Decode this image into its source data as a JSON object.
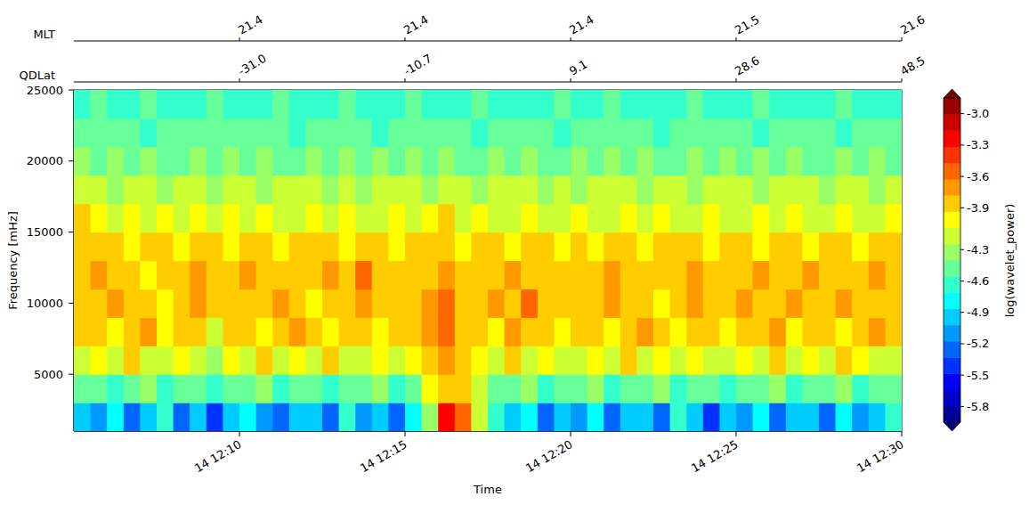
{
  "chart_data": {
    "type": "heatmap",
    "x_label": "Time",
    "y_label": "Frequency [mHz]",
    "xlim": [
      5,
      30
    ],
    "xticks": [
      {
        "value": 10,
        "label": "14 12:10"
      },
      {
        "value": 15,
        "label": "14 12:15"
      },
      {
        "value": 20,
        "label": "14 12:20"
      },
      {
        "value": 25,
        "label": "14 12:25"
      },
      {
        "value": 30,
        "label": "14 12:30"
      }
    ],
    "ylim": [
      1000,
      25000
    ],
    "yticks": [
      5000,
      10000,
      15000,
      20000,
      25000
    ],
    "x": [
      5.25,
      5.75,
      6.25,
      6.75,
      7.25,
      7.75,
      8.25,
      8.75,
      9.25,
      9.75,
      10.25,
      10.75,
      11.25,
      11.75,
      12.25,
      12.75,
      13.25,
      13.75,
      14.25,
      14.75,
      15.25,
      15.75,
      16.25,
      16.75,
      17.25,
      17.75,
      18.25,
      18.75,
      19.25,
      19.75,
      20.25,
      20.75,
      21.25,
      21.75,
      22.25,
      22.75,
      23.25,
      23.75,
      24.25,
      24.75,
      25.25,
      25.75,
      26.25,
      26.75,
      27.25,
      27.75,
      28.25,
      28.75,
      29.25,
      29.75
    ],
    "y": [
      2000,
      4000,
      6000,
      8000,
      10000,
      12000,
      14000,
      16000,
      18000,
      20000,
      22000,
      24000
    ],
    "cells": [
      [
        -4.9,
        -5.1,
        -4.8,
        -5.3,
        -5.0,
        -4.7,
        -5.2,
        -4.9,
        -5.4,
        -5.0,
        -4.8,
        -5.1,
        -5.3,
        -4.9,
        -5.0,
        -5.2,
        -4.7,
        -5.1,
        -5.0,
        -5.3,
        -4.8,
        -4.3,
        -3.2,
        -3.5,
        -4.2,
        -4.7,
        -5.0,
        -4.8,
        -5.2,
        -4.9,
        -5.1,
        -4.8,
        -5.3,
        -5.0,
        -4.9,
        -5.2,
        -4.7,
        -5.0,
        -5.4,
        -4.9,
        -5.1,
        -4.8,
        -5.2,
        -5.0,
        -4.9,
        -5.3,
        -4.8,
        -5.1,
        -5.0,
        -4.7
      ],
      [
        -4.5,
        -4.4,
        -4.7,
        -4.5,
        -4.3,
        -4.6,
        -4.4,
        -4.5,
        -4.7,
        -4.4,
        -4.5,
        -4.3,
        -4.6,
        -4.4,
        -4.5,
        -4.7,
        -4.4,
        -4.5,
        -4.3,
        -4.6,
        -4.4,
        -4.0,
        -3.8,
        -3.9,
        -4.1,
        -4.4,
        -4.5,
        -4.3,
        -4.6,
        -4.4,
        -4.5,
        -4.3,
        -4.6,
        -4.4,
        -4.5,
        -4.3,
        -4.6,
        -4.5,
        -4.4,
        -4.7,
        -4.4,
        -4.5,
        -4.3,
        -4.6,
        -4.4,
        -4.5,
        -4.3,
        -4.6,
        -4.4,
        -4.5
      ],
      [
        -4.1,
        -4.0,
        -4.2,
        -3.9,
        -4.1,
        -4.2,
        -4.0,
        -4.1,
        -4.3,
        -4.0,
        -4.1,
        -3.9,
        -4.2,
        -4.0,
        -4.1,
        -3.9,
        -4.2,
        -4.1,
        -4.0,
        -4.2,
        -4.0,
        -3.8,
        -3.7,
        -3.9,
        -4.0,
        -4.1,
        -3.9,
        -4.2,
        -4.0,
        -4.1,
        -4.2,
        -4.0,
        -4.1,
        -3.9,
        -4.2,
        -4.0,
        -4.1,
        -4.0,
        -4.2,
        -4.1,
        -4.0,
        -4.1,
        -3.9,
        -4.2,
        -4.0,
        -4.1,
        -3.9,
        -4.0,
        -4.2,
        -4.1
      ],
      [
        -3.9,
        -3.8,
        -4.0,
        -3.9,
        -3.7,
        -4.0,
        -3.9,
        -3.8,
        -4.1,
        -3.9,
        -3.8,
        -4.0,
        -3.9,
        -3.7,
        -3.9,
        -4.0,
        -3.8,
        -3.9,
        -4.0,
        -3.8,
        -3.9,
        -3.7,
        -3.6,
        -3.8,
        -3.9,
        -4.0,
        -3.7,
        -3.9,
        -3.8,
        -4.0,
        -3.9,
        -3.8,
        -4.0,
        -3.9,
        -3.7,
        -3.9,
        -4.0,
        -3.8,
        -3.9,
        -4.0,
        -3.8,
        -3.9,
        -3.7,
        -4.0,
        -3.9,
        -3.8,
        -4.0,
        -3.9,
        -3.7,
        -3.9
      ],
      [
        -3.8,
        -3.9,
        -3.7,
        -3.9,
        -3.8,
        -4.0,
        -3.8,
        -3.7,
        -3.9,
        -3.8,
        -3.9,
        -3.8,
        -3.7,
        -3.9,
        -4.0,
        -3.8,
        -3.9,
        -3.7,
        -3.8,
        -3.9,
        -3.8,
        -3.7,
        -3.6,
        -3.8,
        -3.9,
        -3.7,
        -3.8,
        -3.6,
        -3.9,
        -3.8,
        -3.9,
        -3.8,
        -3.7,
        -3.9,
        -3.8,
        -4.0,
        -3.8,
        -3.7,
        -3.9,
        -3.8,
        -3.7,
        -3.9,
        -3.8,
        -3.7,
        -3.9,
        -3.8,
        -3.7,
        -3.9,
        -3.8,
        -3.9
      ],
      [
        -3.8,
        -3.7,
        -3.9,
        -3.8,
        -4.0,
        -3.8,
        -3.9,
        -3.7,
        -3.8,
        -3.9,
        -3.7,
        -3.9,
        -3.8,
        -3.8,
        -3.9,
        -3.7,
        -3.8,
        -3.6,
        -3.8,
        -3.9,
        -3.8,
        -3.9,
        -3.7,
        -3.8,
        -3.9,
        -3.8,
        -3.7,
        -3.9,
        -3.8,
        -3.9,
        -3.8,
        -3.9,
        -3.7,
        -3.8,
        -3.9,
        -3.8,
        -3.9,
        -3.7,
        -3.8,
        -3.9,
        -3.8,
        -3.7,
        -3.9,
        -3.8,
        -3.7,
        -3.9,
        -3.8,
        -3.9,
        -3.7,
        -3.8
      ],
      [
        -3.8,
        -3.9,
        -3.8,
        -4.0,
        -3.9,
        -3.8,
        -4.0,
        -3.9,
        -3.8,
        -4.0,
        -3.9,
        -3.8,
        -4.0,
        -3.9,
        -3.8,
        -3.9,
        -4.0,
        -3.8,
        -3.9,
        -4.0,
        -3.9,
        -3.8,
        -3.9,
        -4.0,
        -3.8,
        -3.9,
        -4.0,
        -3.9,
        -3.8,
        -4.0,
        -3.9,
        -4.0,
        -3.8,
        -3.9,
        -4.0,
        -3.9,
        -3.8,
        -3.9,
        -4.0,
        -3.8,
        -3.9,
        -4.0,
        -3.8,
        -3.9,
        -4.0,
        -3.8,
        -3.9,
        -4.0,
        -3.8,
        -3.9
      ],
      [
        -3.9,
        -4.0,
        -4.1,
        -4.0,
        -4.1,
        -4.0,
        -4.2,
        -4.0,
        -4.1,
        -4.0,
        -4.1,
        -4.0,
        -4.2,
        -4.1,
        -4.0,
        -4.1,
        -4.0,
        -4.2,
        -4.1,
        -4.0,
        -4.1,
        -4.0,
        -3.9,
        -4.1,
        -4.0,
        -4.2,
        -4.1,
        -4.0,
        -4.1,
        -4.2,
        -4.0,
        -4.1,
        -4.2,
        -4.0,
        -4.1,
        -4.0,
        -4.2,
        -4.1,
        -4.0,
        -4.1,
        -4.2,
        -4.0,
        -4.1,
        -4.0,
        -4.2,
        -4.1,
        -4.0,
        -4.1,
        -4.2,
        -4.0
      ],
      [
        -4.1,
        -4.2,
        -4.3,
        -4.2,
        -4.2,
        -4.3,
        -4.2,
        -4.1,
        -4.3,
        -4.2,
        -4.2,
        -4.3,
        -4.2,
        -4.1,
        -4.2,
        -4.3,
        -4.2,
        -4.3,
        -4.2,
        -4.1,
        -4.2,
        -4.3,
        -4.2,
        -4.2,
        -4.3,
        -4.2,
        -4.1,
        -4.2,
        -4.3,
        -4.2,
        -4.3,
        -4.2,
        -4.2,
        -4.1,
        -4.3,
        -4.2,
        -4.2,
        -4.3,
        -4.2,
        -4.1,
        -4.2,
        -4.3,
        -4.2,
        -4.2,
        -4.1,
        -4.3,
        -4.2,
        -4.2,
        -4.3,
        -4.2
      ],
      [
        -4.3,
        -4.4,
        -4.3,
        -4.4,
        -4.3,
        -4.4,
        -4.4,
        -4.3,
        -4.4,
        -4.3,
        -4.4,
        -4.3,
        -4.4,
        -4.4,
        -4.3,
        -4.4,
        -4.3,
        -4.4,
        -4.3,
        -4.4,
        -4.3,
        -4.4,
        -4.3,
        -4.4,
        -4.4,
        -4.3,
        -4.4,
        -4.3,
        -4.4,
        -4.4,
        -4.3,
        -4.4,
        -4.3,
        -4.4,
        -4.3,
        -4.4,
        -4.4,
        -4.3,
        -4.4,
        -4.3,
        -4.4,
        -4.3,
        -4.4,
        -4.3,
        -4.4,
        -4.4,
        -4.3,
        -4.4,
        -4.3,
        -4.4
      ],
      [
        -4.4,
        -4.5,
        -4.5,
        -4.4,
        -4.6,
        -4.5,
        -4.4,
        -4.5,
        -4.5,
        -4.4,
        -4.5,
        -4.4,
        -4.5,
        -4.6,
        -4.4,
        -4.5,
        -4.5,
        -4.4,
        -4.6,
        -4.5,
        -4.4,
        -4.5,
        -4.5,
        -4.4,
        -4.6,
        -4.5,
        -4.4,
        -4.5,
        -4.5,
        -4.6,
        -4.4,
        -4.5,
        -4.5,
        -4.4,
        -4.5,
        -4.6,
        -4.4,
        -4.5,
        -4.5,
        -4.4,
        -4.5,
        -4.6,
        -4.4,
        -4.5,
        -4.5,
        -4.4,
        -4.6,
        -4.5,
        -4.4,
        -4.5
      ],
      [
        -4.6,
        -4.5,
        -4.7,
        -4.6,
        -4.5,
        -4.7,
        -4.6,
        -4.6,
        -4.5,
        -4.7,
        -4.6,
        -4.7,
        -4.5,
        -4.6,
        -4.6,
        -4.7,
        -4.5,
        -4.6,
        -4.7,
        -4.6,
        -4.5,
        -4.6,
        -4.7,
        -4.6,
        -4.5,
        -4.6,
        -4.7,
        -4.6,
        -4.6,
        -4.5,
        -4.7,
        -4.6,
        -4.5,
        -4.6,
        -4.7,
        -4.6,
        -4.6,
        -4.5,
        -4.7,
        -4.6,
        -4.6,
        -4.5,
        -4.7,
        -4.6,
        -4.6,
        -4.7,
        -4.5,
        -4.6,
        -4.6,
        -4.7
      ]
    ],
    "colorbar": {
      "label": "log(wavelet_power)",
      "lim": [
        -5.95,
        -2.85
      ],
      "ticks": [
        {
          "value": -3.0,
          "label": "-3.0"
        },
        -3.3,
        -3.6,
        -3.9,
        -4.3,
        -4.6,
        -4.9,
        -5.2,
        -5.5,
        -5.8
      ]
    },
    "top_axes": [
      {
        "label": "MLT",
        "ticks": [
          21.4,
          21.4,
          21.4,
          21.5,
          21.6
        ]
      },
      {
        "label": "QDLat",
        "ticks": [
          {
            "value": -31,
            "label": "-31.0"
          },
          -10.7,
          9.1,
          28.6,
          48.5
        ]
      }
    ]
  }
}
